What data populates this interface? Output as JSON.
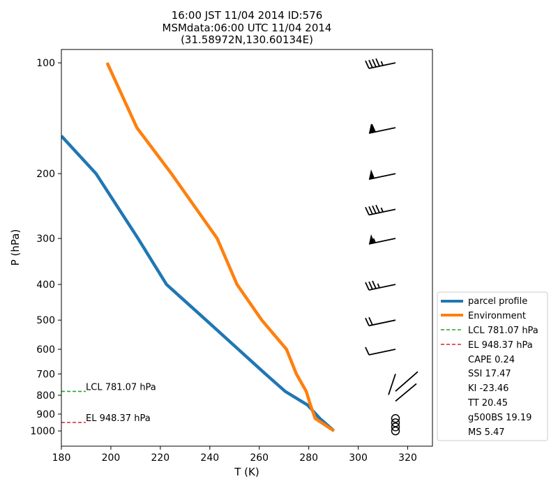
{
  "chart_data": {
    "type": "line",
    "title_lines": [
      "16:00 JST 11/04 2014  ID:576",
      "MSMdata:06:00 UTC 11/04 2014",
      "(31.58972N,130.60134E)"
    ],
    "xlabel": "T (K)",
    "ylabel": "P (hPa)",
    "xlim": [
      180,
      330
    ],
    "ylim": [
      1100,
      92
    ],
    "y_scale": "log",
    "x_ticks": [
      180,
      200,
      220,
      240,
      260,
      280,
      300,
      320
    ],
    "y_ticks": [
      100,
      200,
      300,
      400,
      500,
      600,
      700,
      800,
      900,
      1000
    ],
    "series": [
      {
        "name": "parcel profile",
        "color": "#1f77b4",
        "T": [
          290.2,
          284.5,
          279.5,
          270.5,
          262.5,
          251.5,
          238.5,
          222.5,
          211.0,
          194.0,
          180.0
        ],
        "p": [
          1000,
          925,
          850,
          781,
          700,
          600,
          500,
          400,
          300,
          200,
          158
        ]
      },
      {
        "name": "Environment",
        "color": "#ff7f0e",
        "T": [
          290.2,
          282.6,
          280.7,
          279.0,
          275.0,
          271.0,
          261.0,
          251.0,
          243.0,
          224.5,
          210.5,
          198.5
        ],
        "p": [
          1000,
          925,
          850,
          781,
          700,
          600,
          500,
          400,
          300,
          200,
          150,
          100
        ]
      }
    ],
    "lcl": {
      "label": "LCL 781.07 hPa",
      "p": 781.07,
      "color": "#2ca02c"
    },
    "el": {
      "label": "EL 948.37 hPa",
      "p": 948.37,
      "color": "#d62728"
    },
    "legend_position": "lower-right",
    "legend_entries": [
      "parcel profile",
      "Environment",
      "LCL 781.07 hPa",
      "EL 948.37 hPa",
      "CAPE 0.24",
      "SSI 17.47",
      "KI -23.46",
      "TT 20.45",
      "g500BS 19.19",
      "MS 5.47"
    ],
    "wind_barbs": [
      {
        "p": 100,
        "pennants": 0,
        "full": 4,
        "half": 1,
        "calm": false
      },
      {
        "p": 150,
        "pennants": 1,
        "full": 1,
        "half": 0,
        "calm": false
      },
      {
        "p": 200,
        "pennants": 1,
        "full": 0,
        "half": 0,
        "calm": false
      },
      {
        "p": 250,
        "pennants": 0,
        "full": 4,
        "half": 1,
        "calm": false
      },
      {
        "p": 300,
        "pennants": 1,
        "full": 0,
        "half": 1,
        "calm": false
      },
      {
        "p": 400,
        "pennants": 0,
        "full": 3,
        "half": 1,
        "calm": false
      },
      {
        "p": 500,
        "pennants": 0,
        "full": 2,
        "half": 0,
        "calm": false
      },
      {
        "p": 600,
        "pennants": 0,
        "full": 1,
        "half": 0,
        "calm": false
      },
      {
        "p": 925,
        "calm": true
      },
      {
        "p": 950,
        "calm": true
      },
      {
        "p": 975,
        "calm": true
      },
      {
        "p": 1000,
        "calm": true
      }
    ]
  }
}
